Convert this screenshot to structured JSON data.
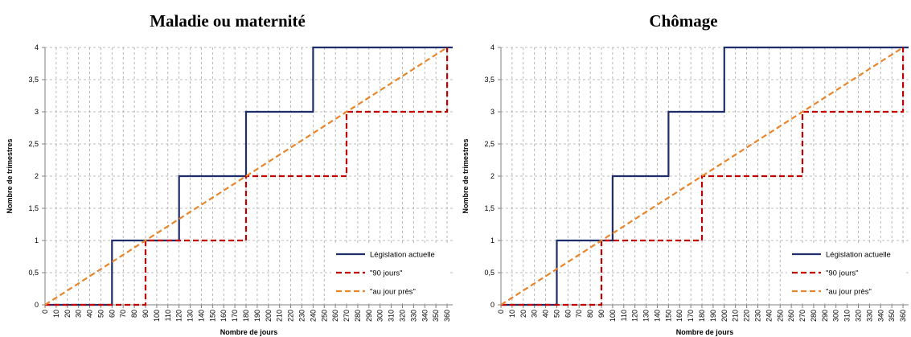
{
  "chart_data": [
    {
      "type": "line",
      "title": "Maladie ou maternité",
      "xlabel": "Nombre de jours",
      "ylabel": "Nombre de trimestres",
      "xlim": [
        0,
        365
      ],
      "ylim": [
        0,
        4
      ],
      "xticks": [
        0,
        10,
        20,
        30,
        40,
        50,
        60,
        70,
        80,
        90,
        100,
        110,
        120,
        130,
        140,
        150,
        160,
        170,
        180,
        190,
        200,
        210,
        220,
        230,
        240,
        250,
        260,
        270,
        280,
        290,
        300,
        310,
        320,
        330,
        340,
        350,
        360
      ],
      "yticks": [
        0,
        0.5,
        1,
        1.5,
        2,
        2.5,
        3,
        3.5,
        4
      ],
      "ytick_labels": [
        "0",
        "0,5",
        "1",
        "1,5",
        "2",
        "2,5",
        "3",
        "3,5",
        "4"
      ],
      "grid": true,
      "legend_position": "bottom-right",
      "series": [
        {
          "name": "Législation actuelle",
          "color": "#1f2d6b",
          "style": "solid",
          "points": [
            [
              0,
              0
            ],
            [
              60,
              0
            ],
            [
              60,
              1
            ],
            [
              120,
              1
            ],
            [
              120,
              2
            ],
            [
              180,
              2
            ],
            [
              180,
              3
            ],
            [
              240,
              3
            ],
            [
              240,
              4
            ],
            [
              365,
              4
            ]
          ]
        },
        {
          "name": "\"90 jours\"",
          "color": "#c00000",
          "style": "dashed",
          "points": [
            [
              0,
              0
            ],
            [
              90,
              0
            ],
            [
              90,
              1
            ],
            [
              180,
              1
            ],
            [
              180,
              2
            ],
            [
              270,
              2
            ],
            [
              270,
              3
            ],
            [
              360,
              3
            ],
            [
              360,
              4
            ]
          ]
        },
        {
          "name": "\"au jour près\"",
          "color": "#e9852a",
          "style": "dashed",
          "points": [
            [
              0,
              0
            ],
            [
              360,
              4
            ]
          ]
        }
      ]
    },
    {
      "type": "line",
      "title": "Chômage",
      "xlabel": "Nombre de jours",
      "ylabel": "Nombre de trimestres",
      "xlim": [
        0,
        365
      ],
      "ylim": [
        0,
        4
      ],
      "xticks": [
        0,
        10,
        20,
        30,
        40,
        50,
        60,
        70,
        80,
        90,
        100,
        110,
        120,
        130,
        140,
        150,
        160,
        170,
        180,
        190,
        200,
        210,
        220,
        230,
        240,
        250,
        260,
        270,
        280,
        290,
        300,
        310,
        320,
        330,
        340,
        350,
        360
      ],
      "yticks": [
        0,
        0.5,
        1,
        1.5,
        2,
        2.5,
        3,
        3.5,
        4
      ],
      "ytick_labels": [
        "0",
        "0,5",
        "1",
        "1,5",
        "2",
        "2,5",
        "3",
        "3,5",
        "4"
      ],
      "grid": true,
      "legend_position": "bottom-right",
      "series": [
        {
          "name": "Législation actuelle",
          "color": "#1f2d6b",
          "style": "solid",
          "points": [
            [
              0,
              0
            ],
            [
              50,
              0
            ],
            [
              50,
              1
            ],
            [
              100,
              1
            ],
            [
              100,
              2
            ],
            [
              150,
              2
            ],
            [
              150,
              3
            ],
            [
              200,
              3
            ],
            [
              200,
              4
            ],
            [
              365,
              4
            ]
          ]
        },
        {
          "name": "\"90 jours\"",
          "color": "#c00000",
          "style": "dashed",
          "points": [
            [
              0,
              0
            ],
            [
              90,
              0
            ],
            [
              90,
              1
            ],
            [
              180,
              1
            ],
            [
              180,
              2
            ],
            [
              270,
              2
            ],
            [
              270,
              3
            ],
            [
              360,
              3
            ],
            [
              360,
              4
            ]
          ]
        },
        {
          "name": "\"au jour près\"",
          "color": "#e9852a",
          "style": "dashed",
          "points": [
            [
              0,
              0
            ],
            [
              360,
              4
            ]
          ]
        }
      ]
    }
  ]
}
